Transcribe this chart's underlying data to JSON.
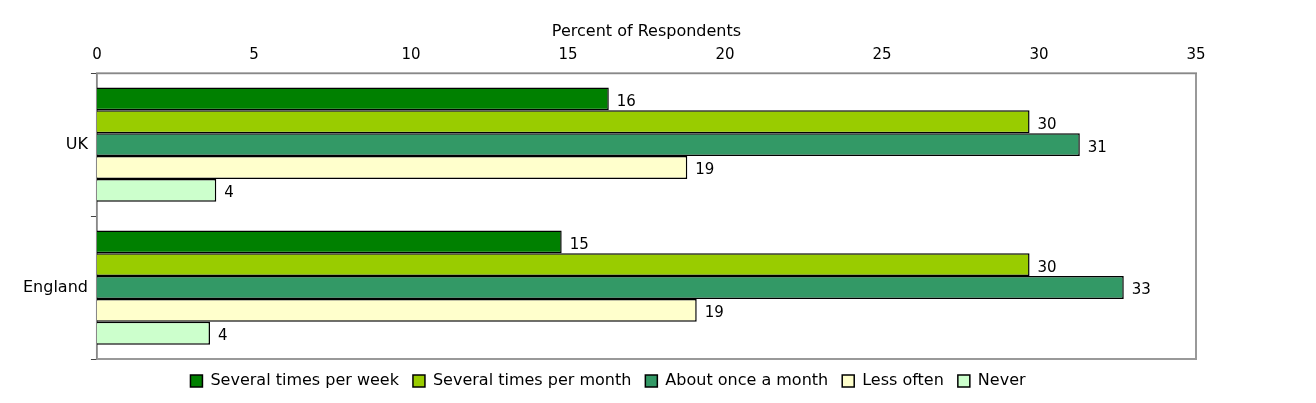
{
  "chart_data": {
    "type": "bar",
    "orientation": "horizontal",
    "xlabel": "Percent of Respondents",
    "categories": [
      "UK",
      "England"
    ],
    "series": [
      {
        "name": "Several times per week",
        "color": "#008000",
        "values": [
          16.3,
          14.8
        ],
        "value_labels": [
          "16",
          "15"
        ]
      },
      {
        "name": "Several times per month",
        "color": "#99cc00",
        "values": [
          29.7,
          29.7
        ],
        "value_labels": [
          "30",
          "30"
        ]
      },
      {
        "name": "About once a month",
        "color": "#339966",
        "values": [
          31.3,
          32.7
        ],
        "value_labels": [
          "31",
          "33"
        ]
      },
      {
        "name": "Less often",
        "color": "#ffffcc",
        "values": [
          18.8,
          19.1
        ],
        "value_labels": [
          "19",
          "19"
        ]
      },
      {
        "name": "Never",
        "color": "#ccffcc",
        "values": [
          3.8,
          3.6
        ],
        "value_labels": [
          "4",
          "4"
        ]
      }
    ],
    "xlim": [
      0,
      35
    ],
    "xticks": [
      0,
      5,
      10,
      15,
      20,
      25,
      30,
      35
    ],
    "grid": false,
    "legend": "bottom"
  }
}
